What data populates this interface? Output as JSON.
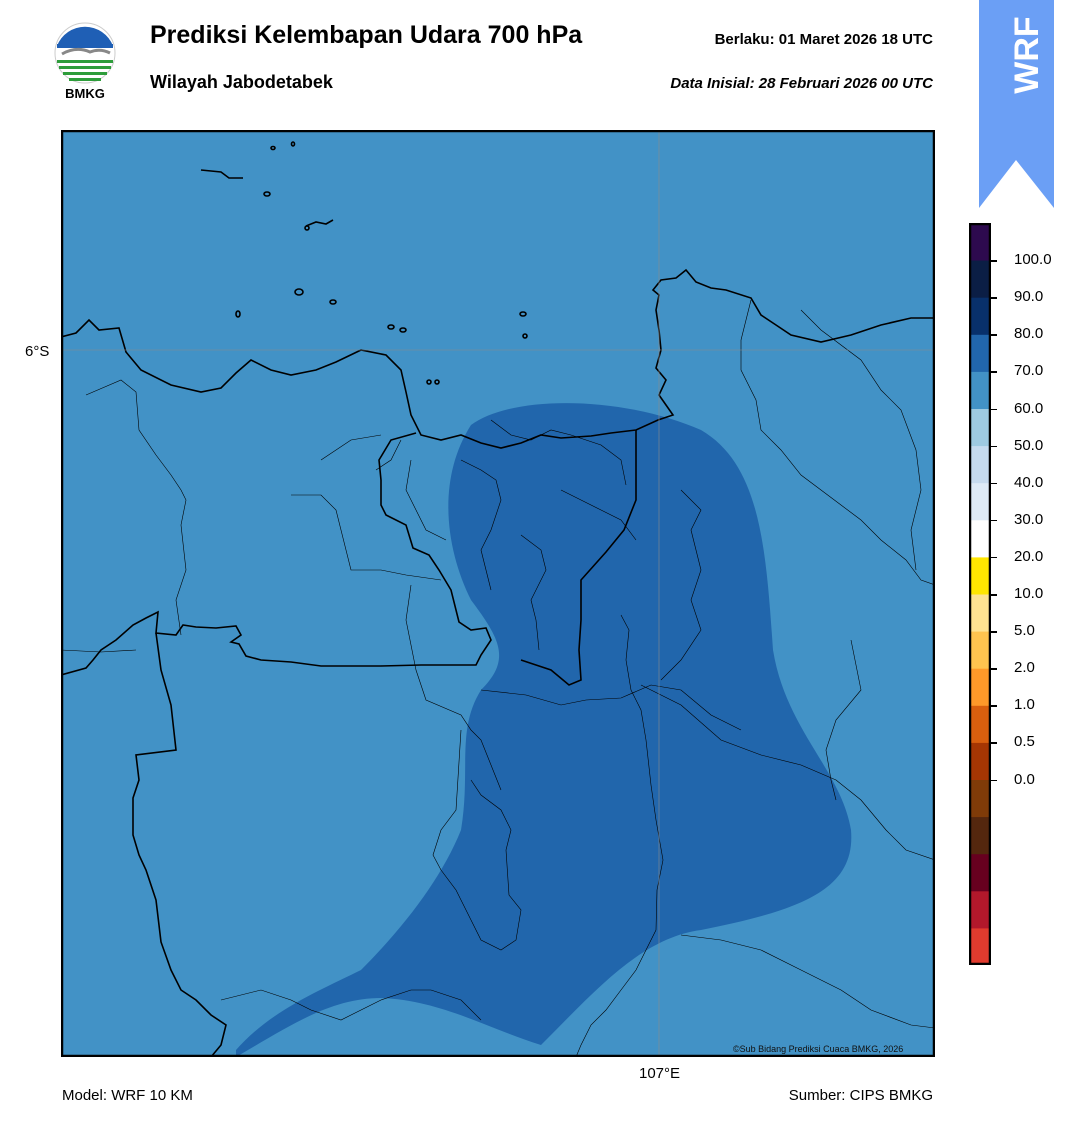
{
  "header": {
    "logo_text": "BMKG",
    "title": "Prediksi Kelembapan Udara 700 hPa",
    "subtitle": "Wilayah Jabodetabek",
    "valid_label": "Berlaku:  01 Maret 2026 18 UTC",
    "init_label": "Data Inisial:  28 Februari 2026 00 UTC"
  },
  "badge": {
    "text": "WRF",
    "color": "#6b9ff5"
  },
  "map": {
    "lat_tick": "6°S",
    "lon_tick": "107°E",
    "copyright": "©Sub Bidang Prediksi Cuaca BMKG, 2026",
    "field_colors": {
      "70-80": "#4292c6",
      "80-90": "#2166ac"
    }
  },
  "colorbar": {
    "labels": [
      "100.0",
      "90.0",
      "80.0",
      "70.0",
      "60.0",
      "50.0",
      "40.0",
      "30.0",
      "20.0",
      "10.0",
      "5.0",
      "2.0",
      "1.0",
      "0.5",
      "0.0"
    ],
    "colors": [
      "#e03b2e",
      "#b2182b",
      "#67001f",
      "#54270e",
      "#7f3b08",
      "#a63603",
      "#d95f0e",
      "#fe9929",
      "#fec44f",
      "#fee391",
      "#ffe600",
      "#ffffff",
      "#deebf7",
      "#c6dbef",
      "#9ecae1",
      "#4292c6",
      "#2166ac",
      "#08306b",
      "#0b1e45",
      "#2d0a4e"
    ]
  },
  "footer": {
    "model": "Model: WRF 10 KM",
    "source": "Sumber: CIPS BMKG"
  }
}
